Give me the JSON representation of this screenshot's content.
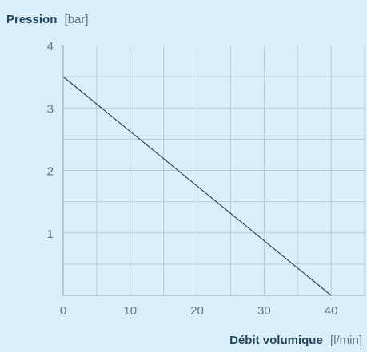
{
  "chart_data": {
    "type": "line",
    "ylabel": {
      "name": "Pression",
      "unit": "[bar]"
    },
    "xlabel": {
      "name": "Débit volumique",
      "unit": "[l/min]"
    },
    "xlim": [
      0,
      45
    ],
    "ylim": [
      0,
      4
    ],
    "x_ticks": [
      0,
      10,
      20,
      30,
      40
    ],
    "y_ticks": [
      1,
      2,
      3,
      4
    ],
    "x_grid_step": 5,
    "y_grid_step": 0.5,
    "grid": true,
    "series": [
      {
        "x": [
          0,
          40
        ],
        "y": [
          3.5,
          0
        ]
      }
    ]
  },
  "colors": {
    "background": "#d9eef9",
    "grid": "#b3cbd9",
    "axis": "#8aa6b6",
    "line": "#2e4653",
    "tick_text": "#5e7887",
    "title_text": "#23465a"
  }
}
